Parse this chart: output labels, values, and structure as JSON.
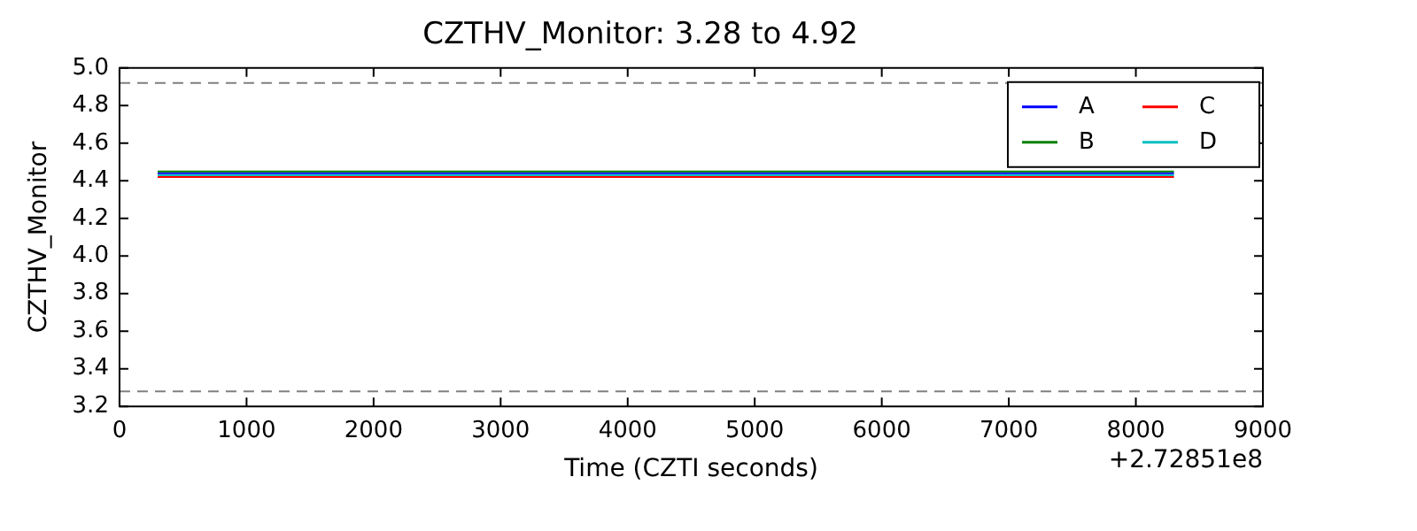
{
  "chart_data": {
    "type": "line",
    "title": "CZTHV_Monitor: 3.28 to 4.92",
    "xlabel": "Time (CZTI seconds)",
    "ylabel": "CZTHV_Monitor",
    "x": [
      300,
      8300
    ],
    "series": [
      {
        "name": "A",
        "color": "#0000ff",
        "values": [
          4.44,
          4.44
        ]
      },
      {
        "name": "B",
        "color": "#008000",
        "values": [
          4.45,
          4.45
        ]
      },
      {
        "name": "C",
        "color": "#ff0000",
        "values": [
          4.42,
          4.42
        ]
      },
      {
        "name": "D",
        "color": "#00bfbf",
        "values": [
          4.43,
          4.43
        ]
      }
    ],
    "xlim": [
      0,
      9000
    ],
    "xticks": [
      0,
      1000,
      2000,
      3000,
      4000,
      5000,
      6000,
      7000,
      8000,
      9000
    ],
    "ylim": [
      3.2,
      5.0
    ],
    "yticks": [
      3.2,
      3.4,
      3.6,
      3.8,
      {
        "value": 4.0,
        "label": "4.0"
      },
      4.2,
      4.4,
      4.6,
      4.8,
      {
        "value": 5.0,
        "label": "5.0"
      }
    ],
    "ref_lines": [
      {
        "axis": "y",
        "value": 4.92,
        "color": "#808080",
        "line_style": "dashed"
      },
      {
        "axis": "y",
        "value": 3.28,
        "color": "#808080",
        "line_style": "dashed"
      }
    ],
    "annotations": [
      "+2.72851e8"
    ],
    "legend": "top right",
    "marker": "none",
    "line_style": "solid",
    "grid": false
  }
}
